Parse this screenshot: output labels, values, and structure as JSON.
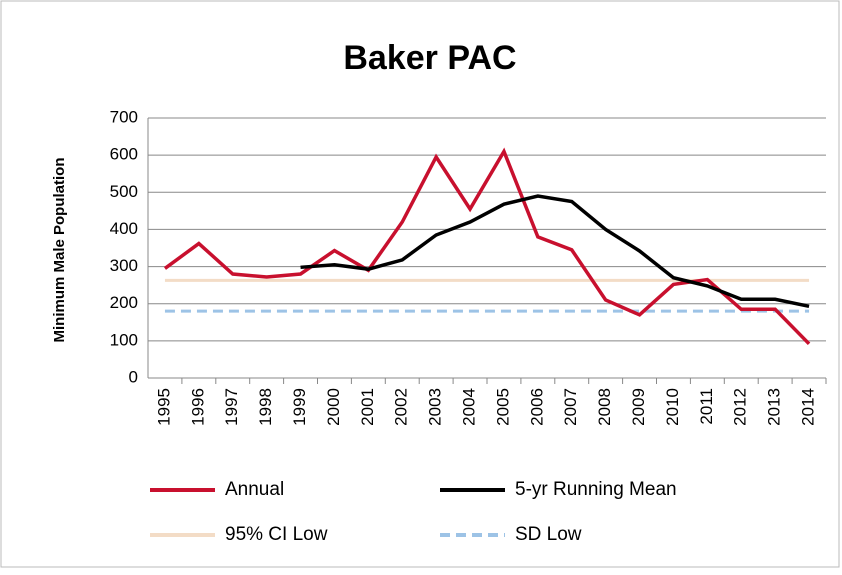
{
  "chart_data": {
    "type": "line",
    "title": "Baker PAC",
    "y_label": "Minimum Male Population",
    "categories": [
      "1995",
      "1996",
      "1997",
      "1998",
      "1999",
      "2000",
      "2001",
      "2002",
      "2003",
      "2004",
      "2005",
      "2006",
      "2007",
      "2008",
      "2009",
      "2010",
      "2011",
      "2012",
      "2013",
      "2014"
    ],
    "series": [
      {
        "name": "Annual",
        "color": "#c8102e",
        "values": [
          295,
          362,
          280,
          272,
          280,
          343,
          290,
          420,
          595,
          455,
          610,
          380,
          345,
          210,
          170,
          252,
          265,
          185,
          185,
          92
        ]
      },
      {
        "name": "5-yr Running Mean",
        "color": "#000000",
        "values": [
          null,
          null,
          null,
          null,
          298,
          305,
          293,
          318,
          385,
          420,
          468,
          490,
          475,
          400,
          342,
          270,
          248,
          212,
          212,
          193
        ]
      },
      {
        "name": "95% CI Low",
        "color": "#f3dcc6",
        "values": [
          263,
          263,
          263,
          263,
          263,
          263,
          263,
          263,
          263,
          263,
          263,
          263,
          263,
          263,
          263,
          263,
          263,
          263,
          263,
          263
        ]
      },
      {
        "name": "SD Low",
        "color": "#9dc3e6",
        "dashed": true,
        "values": [
          180,
          180,
          180,
          180,
          180,
          180,
          180,
          180,
          180,
          180,
          180,
          180,
          180,
          180,
          180,
          180,
          180,
          180,
          180,
          180
        ]
      }
    ],
    "ylim": [
      0,
      700
    ],
    "yticks": [
      0,
      100,
      200,
      300,
      400,
      500,
      600,
      700
    ],
    "grid": true,
    "legend": "bottom"
  }
}
